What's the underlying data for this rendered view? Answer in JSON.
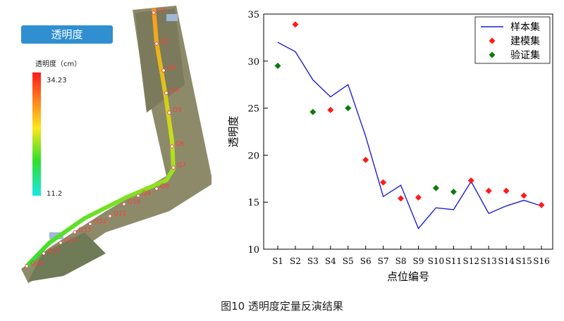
{
  "map": {
    "title": "透明度",
    "legend_title": "透明度（cm）",
    "legend_max": "34.23",
    "legend_min": "11.2",
    "points": [
      "Q1",
      "Q2",
      "Q3",
      "Q4",
      "Q5",
      "Q6",
      "Q7",
      "Q8",
      "Q9",
      "Q10",
      "Q11",
      "Q12",
      "Q13",
      "Q14",
      "Q15",
      "Q16"
    ]
  },
  "caption": "图10   透明度定量反演结果",
  "chart_data": {
    "type": "line",
    "categories": [
      "S1",
      "S2",
      "S3",
      "S4",
      "S5",
      "S6",
      "S7",
      "S8",
      "S9",
      "S10",
      "S11",
      "S12",
      "S13",
      "S14",
      "S15",
      "S16"
    ],
    "xlabel": "点位编号",
    "ylabel": "透明度",
    "ylim": [
      10,
      35
    ],
    "yticks": [
      10,
      15,
      20,
      25,
      30,
      35
    ],
    "legend_position": "top-right",
    "series": [
      {
        "name": "样本集",
        "kind": "line",
        "color": "#1f1fd6",
        "values": [
          32.0,
          31.0,
          28.0,
          26.2,
          27.5,
          22.0,
          15.6,
          16.8,
          12.2,
          14.4,
          14.2,
          17.2,
          13.8,
          14.6,
          15.2,
          14.6
        ]
      },
      {
        "name": "建模集",
        "kind": "marker",
        "color": "#ff1a1a",
        "values": [
          null,
          33.9,
          null,
          24.8,
          null,
          19.5,
          17.1,
          15.4,
          15.5,
          null,
          null,
          17.3,
          16.2,
          16.2,
          15.7,
          14.7
        ]
      },
      {
        "name": "验证集",
        "kind": "marker",
        "color": "#0d7a0d",
        "values": [
          29.5,
          null,
          24.6,
          null,
          25.0,
          null,
          null,
          null,
          null,
          16.5,
          16.1,
          null,
          null,
          null,
          null,
          null
        ]
      }
    ]
  }
}
